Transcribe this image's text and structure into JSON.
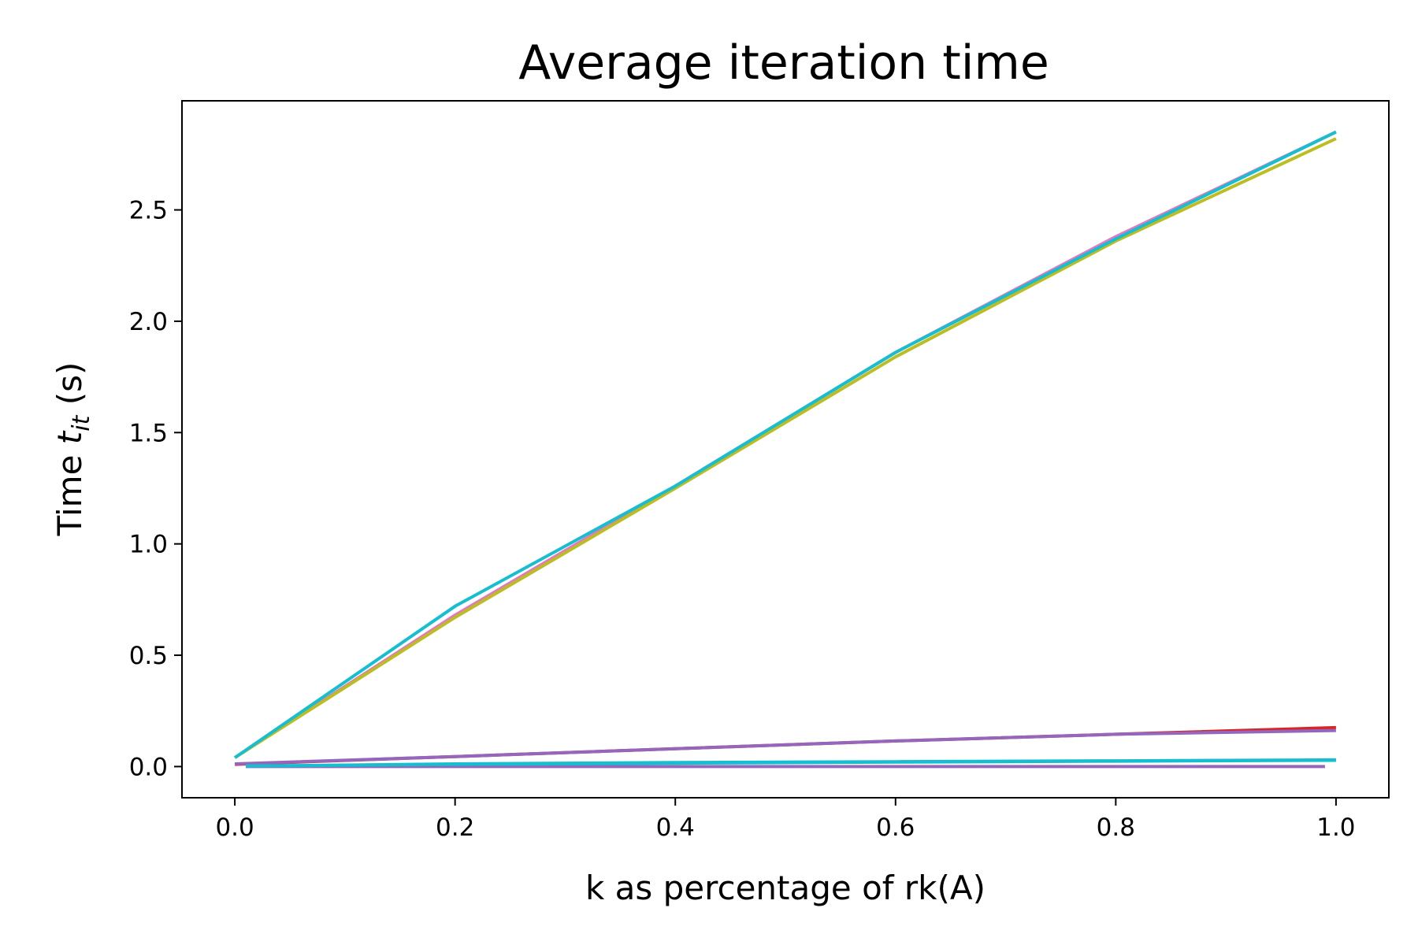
{
  "chart_data": {
    "type": "line",
    "title": "Average iteration time",
    "xlabel": "k as percentage of rk(A)",
    "ylabel_prefix": "Time ",
    "ylabel_var": "t",
    "ylabel_sub": "it",
    "ylabel_suffix": " (s)",
    "xlim": [
      -0.048,
      1.048
    ],
    "ylim": [
      -0.14,
      2.99
    ],
    "xticks": [
      0.0,
      0.2,
      0.4,
      0.6,
      0.8,
      1.0
    ],
    "xtick_labels": [
      "0.0",
      "0.2",
      "0.4",
      "0.6",
      "0.8",
      "1.0"
    ],
    "yticks": [
      0.0,
      0.5,
      1.0,
      1.5,
      2.0,
      2.5
    ],
    "ytick_labels": [
      "0.0",
      "0.5",
      "1.0",
      "1.5",
      "2.0",
      "2.5"
    ],
    "grid": false,
    "legend": "none",
    "series": [
      {
        "color": "#d62728",
        "x": [
          0.0,
          0.2,
          0.4,
          0.6,
          0.8,
          1.0
        ],
        "y": [
          0.01,
          0.045,
          0.08,
          0.115,
          0.145,
          0.175
        ]
      },
      {
        "color": "#9467bd",
        "x": [
          0.0,
          0.2,
          0.4,
          0.6,
          0.8,
          1.0
        ],
        "y": [
          0.012,
          0.045,
          0.08,
          0.115,
          0.145,
          0.162
        ]
      },
      {
        "color": "#9467bd",
        "x": [
          0.01,
          0.2,
          0.4,
          0.6,
          0.8,
          0.99
        ],
        "y": [
          0.0,
          0.0,
          0.0,
          0.0,
          0.0,
          0.0
        ]
      },
      {
        "color": "#17becf",
        "x": [
          0.01,
          0.2,
          0.4,
          0.6,
          0.8,
          1.0
        ],
        "y": [
          0.002,
          0.01,
          0.015,
          0.02,
          0.024,
          0.028
        ]
      },
      {
        "color": "#17becf",
        "x": [
          0.01,
          0.2,
          0.4,
          0.6,
          0.8,
          1.0
        ],
        "y": [
          0.002,
          0.012,
          0.018,
          0.022,
          0.026,
          0.03
        ]
      },
      {
        "color": "#e377c2",
        "x": [
          0.0,
          0.2,
          0.4,
          0.6,
          0.8,
          1.0
        ],
        "y": [
          0.04,
          0.68,
          1.26,
          1.86,
          2.38,
          2.85
        ]
      },
      {
        "color": "#bcbd22",
        "x": [
          0.0,
          0.2,
          0.4,
          0.6,
          0.8,
          1.0
        ],
        "y": [
          0.04,
          0.67,
          1.25,
          1.84,
          2.36,
          2.82
        ]
      },
      {
        "color": "#17becf",
        "x": [
          0.0,
          0.2,
          0.4,
          0.6,
          0.8,
          1.0
        ],
        "y": [
          0.04,
          0.72,
          1.26,
          1.86,
          2.37,
          2.85
        ]
      }
    ]
  }
}
